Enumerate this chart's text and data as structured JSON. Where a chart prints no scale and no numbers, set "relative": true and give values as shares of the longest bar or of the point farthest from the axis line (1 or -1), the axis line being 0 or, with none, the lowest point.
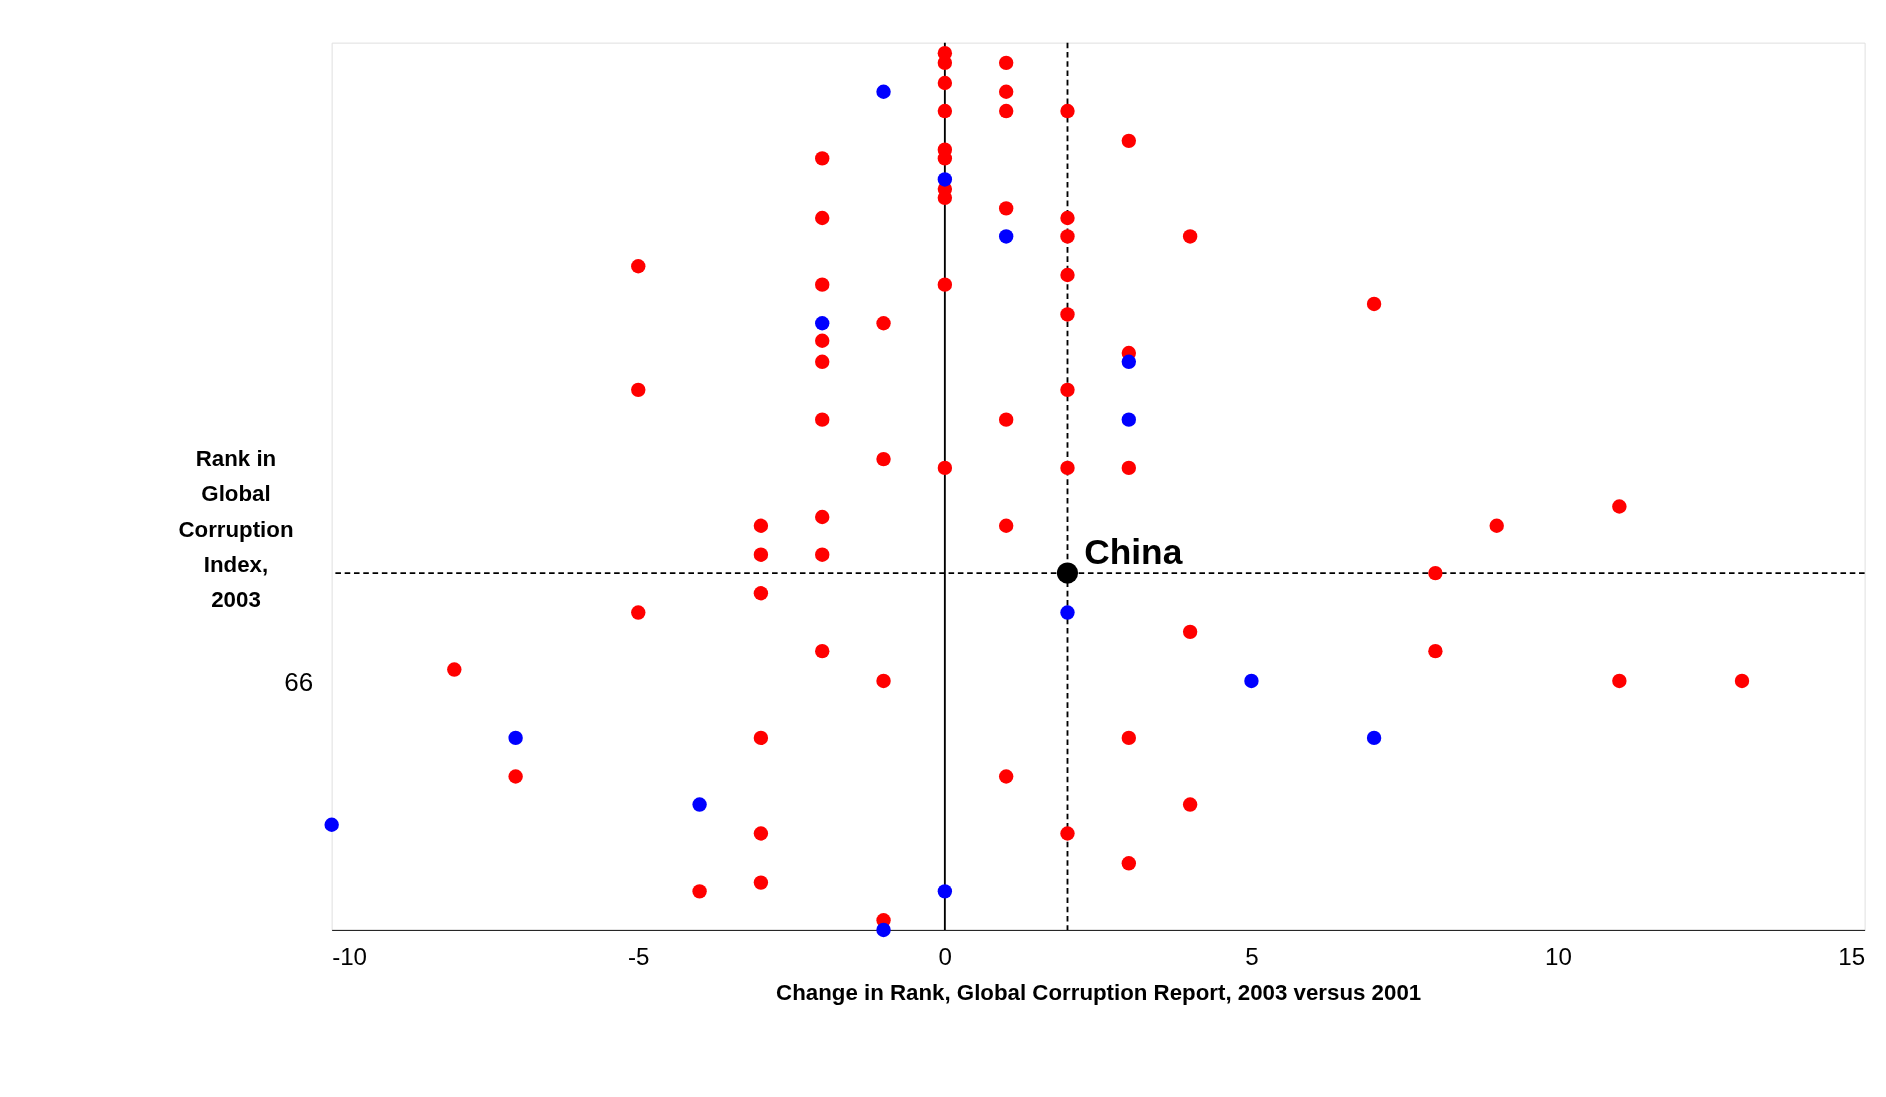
{
  "chart_data": {
    "type": "scatter",
    "relative": true,
    "xlabel": "Change in Rank, Global Corruption Report, 2003 versus 2001",
    "ylabel": "Rank in\nGlobal\nCorruption\nIndex,\n2003",
    "xlim": [
      -10,
      15
    ],
    "xticks": [
      -10,
      -5,
      0,
      5,
      10,
      15
    ],
    "grid": false,
    "series": [
      {
        "color": "#ff0000",
        "x": [
          0,
          0,
          1,
          0,
          1,
          0,
          1,
          2,
          3,
          -2,
          0,
          0,
          0,
          0,
          -2,
          1,
          2,
          2,
          4,
          -5,
          -2,
          0,
          2,
          7,
          2,
          -1,
          -2,
          -2,
          3,
          -5,
          2,
          -2,
          1,
          -1,
          0,
          2,
          3,
          11,
          -3,
          -2,
          1,
          9,
          -3,
          -2,
          8,
          -3,
          -5,
          4,
          -2,
          8,
          -8,
          -1,
          11,
          13,
          -3,
          3,
          -7,
          1,
          4,
          -3,
          2,
          3,
          -3,
          -4,
          -1
        ],
        "values": [
          1.0,
          0.989,
          0.989,
          0.966,
          0.956,
          0.934,
          0.934,
          0.934,
          0.9,
          0.88,
          0.89,
          0.88,
          0.845,
          0.835,
          0.812,
          0.823,
          0.812,
          0.791,
          0.791,
          0.757,
          0.736,
          0.736,
          0.747,
          0.714,
          0.702,
          0.692,
          0.672,
          0.648,
          0.658,
          0.616,
          0.616,
          0.582,
          0.582,
          0.537,
          0.527,
          0.527,
          0.527,
          0.483,
          0.461,
          0.471,
          0.461,
          0.461,
          0.428,
          0.428,
          0.407,
          0.384,
          0.362,
          0.34,
          0.318,
          0.318,
          0.297,
          0.284,
          0.284,
          0.284,
          0.219,
          0.219,
          0.175,
          0.175,
          0.143,
          0.11,
          0.11,
          0.076,
          0.054,
          0.044,
          0.011
        ]
      },
      {
        "color": "#0000ff",
        "x": [
          -1,
          0,
          1,
          -2,
          3,
          3,
          2,
          5,
          -7,
          7,
          -4,
          -10,
          0,
          -1
        ],
        "values": [
          0.956,
          0.856,
          0.791,
          0.692,
          0.648,
          0.582,
          0.362,
          0.284,
          0.219,
          0.219,
          0.143,
          0.12,
          0.044,
          0.0
        ]
      },
      {
        "color": "#000000",
        "x": [
          2
        ],
        "values": [
          0.407
        ]
      }
    ],
    "ref_lines": [
      {
        "axis": "x",
        "value": 0,
        "line_style": "solid",
        "color": "#000000"
      },
      {
        "axis": "x",
        "value": 2,
        "line_style": "dashed",
        "color": "#000000"
      },
      {
        "axis": "y",
        "value": 0.407,
        "line_style": "dashed",
        "color": "#000000"
      }
    ],
    "annotations": [
      {
        "text": "China",
        "x": 2,
        "y": 0.407
      },
      "66"
    ]
  }
}
